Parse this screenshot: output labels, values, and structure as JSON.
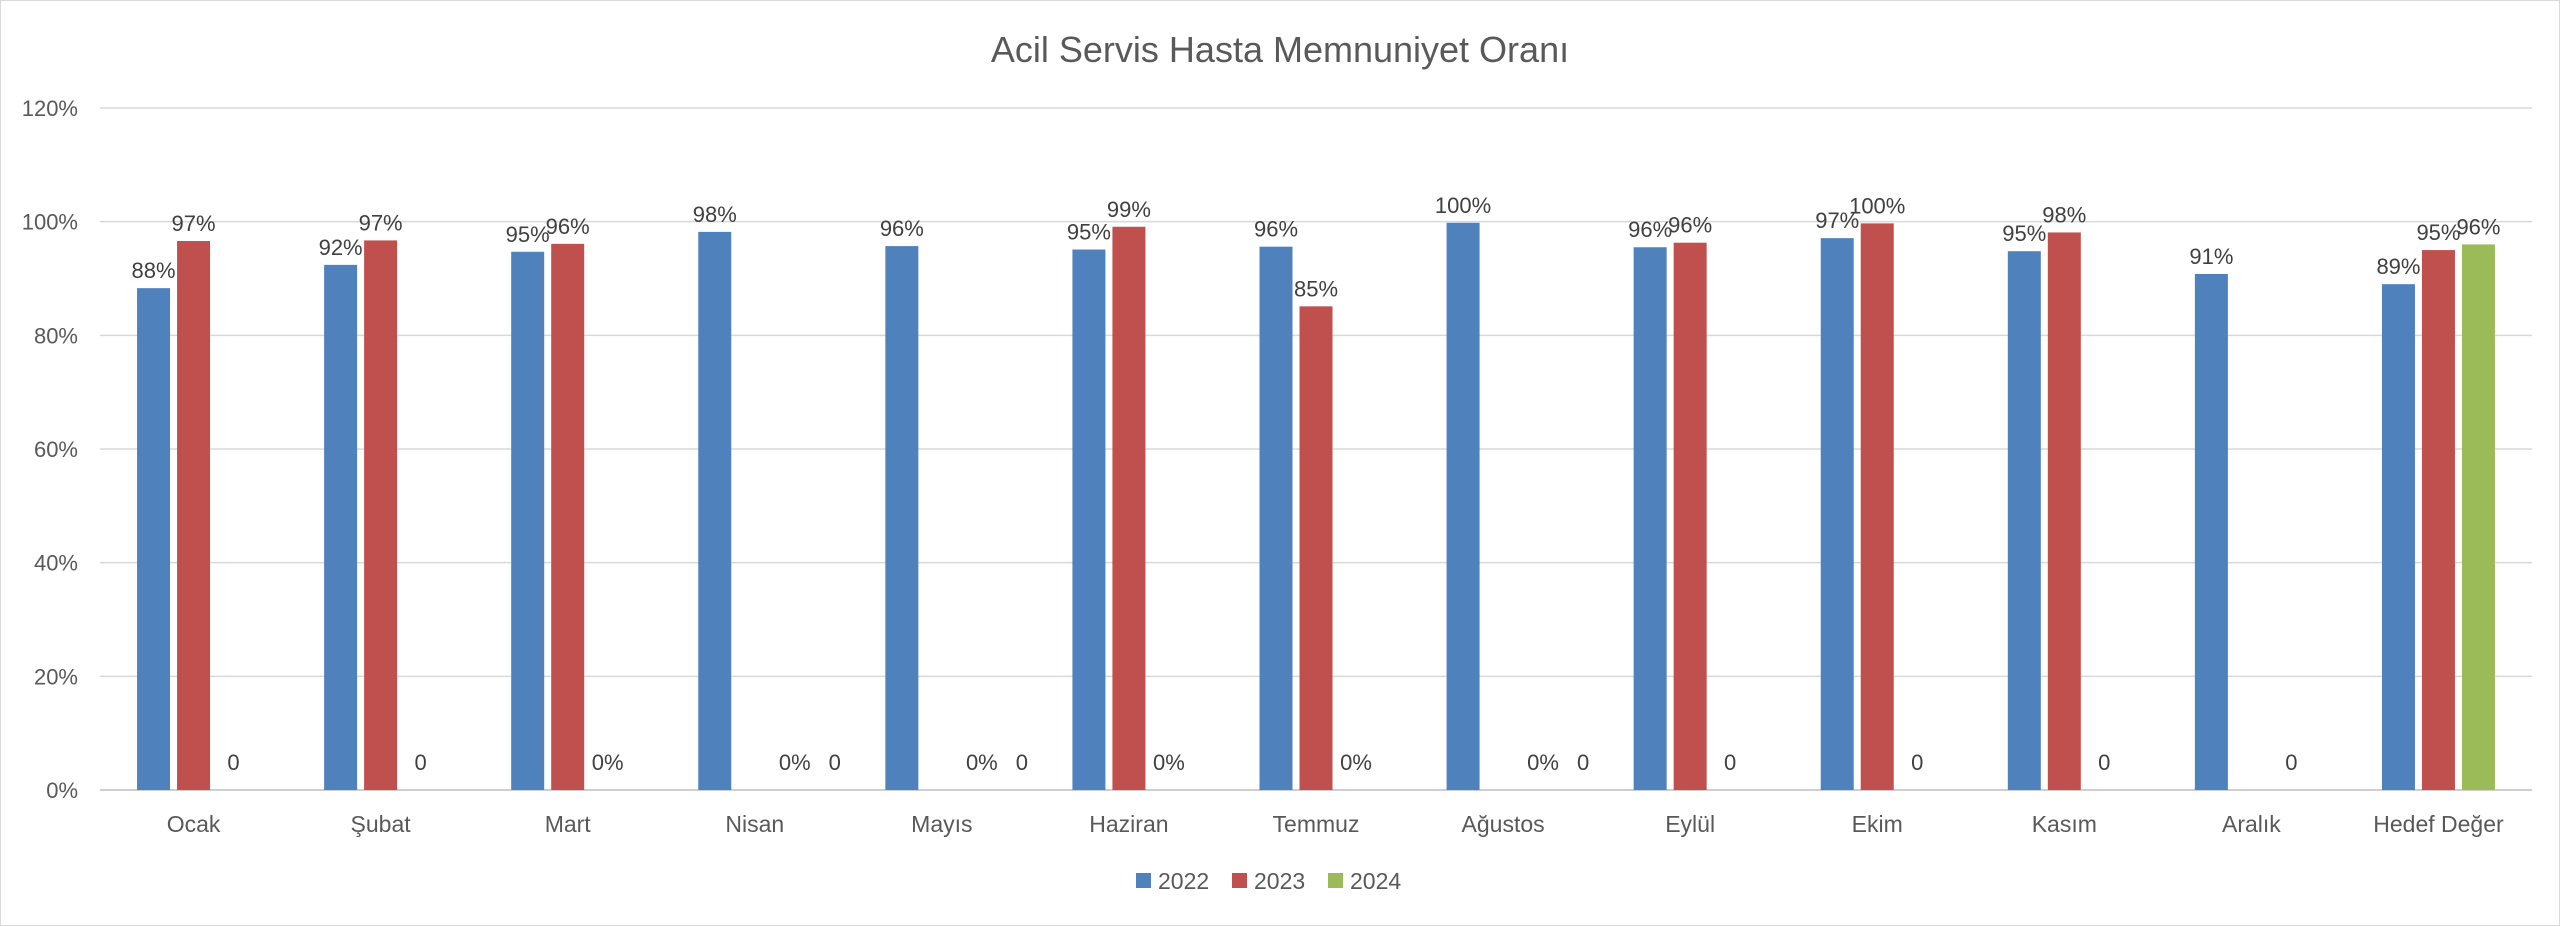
{
  "chart_data": {
    "type": "bar",
    "title": "Acil Servis Hasta Memnuniyet Oranı",
    "xlabel": "",
    "ylabel": "",
    "ylim": [
      0,
      1.2
    ],
    "yticks": [
      0,
      0.2,
      0.4,
      0.6,
      0.8,
      1.0,
      1.2
    ],
    "ytick_labels": [
      "0%",
      "20%",
      "40%",
      "60%",
      "80%",
      "100%",
      "120%"
    ],
    "grid": true,
    "legend_position": "bottom",
    "categories": [
      "Ocak",
      "Şubat",
      "Mart",
      "Nisan",
      "Mayıs",
      "Haziran",
      "Temmuz",
      "Ağustos",
      "Eylül",
      "Ekim",
      "Kasım",
      "Aralık",
      "Hedef Değer"
    ],
    "series": [
      {
        "name": "2022",
        "color": "#4f81bd",
        "values": [
          0.883,
          0.924,
          0.947,
          0.982,
          0.957,
          0.951,
          0.956,
          0.998,
          0.955,
          0.971,
          0.948,
          0.908,
          0.89
        ],
        "labels": [
          "88%",
          "92%",
          "95%",
          "98%",
          "96%",
          "95%",
          "96%",
          "100%",
          "96%",
          "97%",
          "95%",
          "91%",
          "89%"
        ]
      },
      {
        "name": "2023",
        "color": "#c0504d",
        "values": [
          0.966,
          0.967,
          0.961,
          null,
          null,
          0.991,
          0.851,
          null,
          0.963,
          0.997,
          0.981,
          null,
          0.95
        ],
        "labels": [
          "97%",
          "97%",
          "96%",
          "",
          "",
          "99%",
          "85%",
          "",
          "96%",
          "100%",
          "98%",
          "",
          "95%"
        ]
      },
      {
        "name": "2024",
        "color": "#9bbb59",
        "values": [
          0,
          0,
          0,
          0,
          0,
          0,
          0,
          0,
          0,
          0,
          0,
          0,
          0.96
        ],
        "labels": [
          "0",
          "0",
          "0%",
          "0%",
          "0%",
          "0%",
          "0%",
          "0%",
          "0",
          "0",
          "0",
          "0",
          "96%"
        ]
      }
    ],
    "extra_labels": [
      {
        "category": "Nisan",
        "text": "0"
      },
      {
        "category": "Mayıs",
        "text": "0"
      },
      {
        "category": "Ağustos",
        "text": "0"
      }
    ]
  }
}
